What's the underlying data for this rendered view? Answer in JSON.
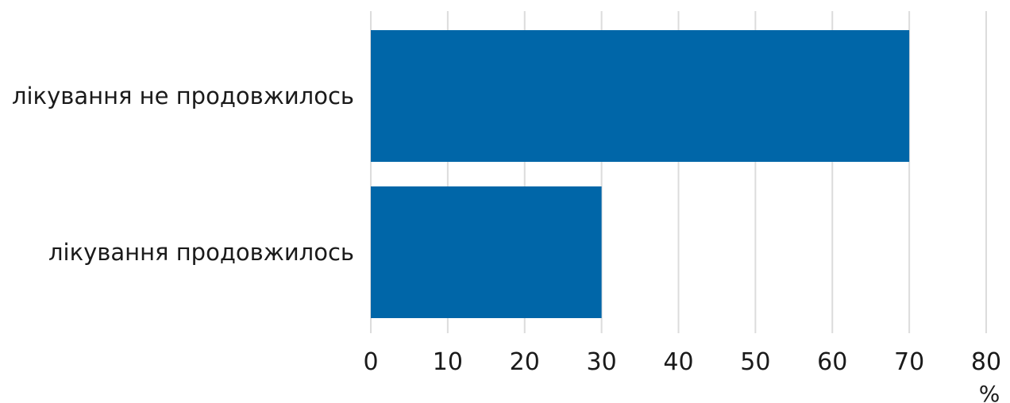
{
  "chart_data": {
    "type": "bar",
    "orientation": "horizontal",
    "categories": [
      "лікування не продовжилось",
      "лікування продовжилось"
    ],
    "values": [
      70,
      30
    ],
    "xlim": [
      0,
      80
    ],
    "xticks": [
      0,
      10,
      20,
      30,
      40,
      50,
      60,
      70,
      80
    ],
    "xlabel": "%",
    "grid": "vertical",
    "bar_color": "#0066a8"
  }
}
